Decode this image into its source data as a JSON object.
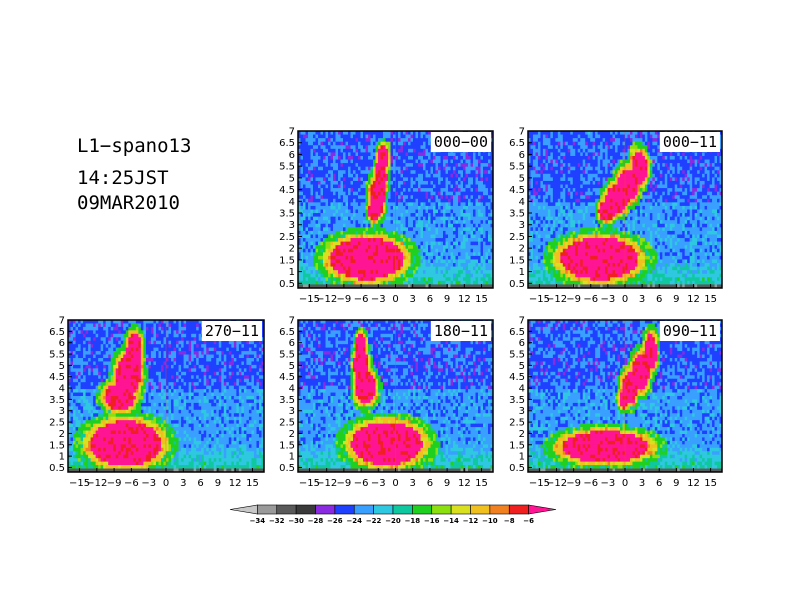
{
  "header": {
    "line1": "L1−spano13",
    "line2": "14:25JST",
    "line3": "09MAR2010"
  },
  "colorbar": {
    "labels": [
      "−34",
      "−32",
      "−30",
      "−28",
      "−26",
      "−24",
      "−22",
      "−20",
      "−18",
      "−16",
      "−14",
      "−12",
      "−10",
      "−8",
      "−6"
    ],
    "colors": [
      "#c8c8c8",
      "#9a9a9a",
      "#5a5a5a",
      "#3a3a3a",
      "#8a2be2",
      "#2040ff",
      "#3aa0ff",
      "#2ec8e0",
      "#10c8a0",
      "#20d020",
      "#8ce010",
      "#d8e020",
      "#f0c020",
      "#f08020",
      "#f02020",
      "#ff1493"
    ],
    "extend": "both"
  },
  "chart_data": [
    {
      "type": "heatmap",
      "title": "000−00",
      "x_ticks": [
        "−15",
        "−12",
        "−9",
        "−6",
        "−3",
        "0",
        "3",
        "6",
        "9",
        "12",
        "15"
      ],
      "y_ticks": [
        "0.5",
        "1",
        "1.5",
        "2",
        "2.5",
        "3",
        "3.5",
        "4",
        "4.5",
        "5",
        "5.5",
        "6",
        "6.5",
        "7"
      ],
      "xlim": [
        -17,
        17
      ],
      "ylim": [
        0.3,
        7
      ],
      "grid": false
    },
    {
      "type": "heatmap",
      "title": "000−11",
      "x_ticks": [
        "−15",
        "−12",
        "−9",
        "−6",
        "−3",
        "0",
        "3",
        "6",
        "9",
        "12",
        "15"
      ],
      "y_ticks": [
        "0.5",
        "1",
        "1.5",
        "2",
        "2.5",
        "3",
        "3.5",
        "4",
        "4.5",
        "5",
        "5.5",
        "6",
        "6.5",
        "7"
      ],
      "xlim": [
        -17,
        17
      ],
      "ylim": [
        0.3,
        7
      ],
      "grid": false
    },
    {
      "type": "heatmap",
      "title": "270−11",
      "x_ticks": [
        "−15",
        "−12",
        "−9",
        "−6",
        "−3",
        "0",
        "3",
        "6",
        "9",
        "12",
        "15"
      ],
      "y_ticks": [
        "0.5",
        "1",
        "1.5",
        "2",
        "2.5",
        "3",
        "3.5",
        "4",
        "4.5",
        "5",
        "5.5",
        "6",
        "6.5",
        "7"
      ],
      "xlim": [
        -17,
        17
      ],
      "ylim": [
        0.3,
        7
      ],
      "grid": false
    },
    {
      "type": "heatmap",
      "title": "180−11",
      "x_ticks": [
        "−15",
        "−12",
        "−9",
        "−6",
        "−3",
        "0",
        "3",
        "6",
        "9",
        "12",
        "15"
      ],
      "y_ticks": [
        "0.5",
        "1",
        "1.5",
        "2",
        "2.5",
        "3",
        "3.5",
        "4",
        "4.5",
        "5",
        "5.5",
        "6",
        "6.5",
        "7"
      ],
      "xlim": [
        -17,
        17
      ],
      "ylim": [
        0.3,
        7
      ],
      "grid": false
    },
    {
      "type": "heatmap",
      "title": "090−11",
      "x_ticks": [
        "−15",
        "−12",
        "−9",
        "−6",
        "−3",
        "0",
        "3",
        "6",
        "9",
        "12",
        "15"
      ],
      "y_ticks": [
        "0.5",
        "1",
        "1.5",
        "2",
        "2.5",
        "3",
        "3.5",
        "4",
        "4.5",
        "5",
        "5.5",
        "6",
        "6.5",
        "7"
      ],
      "xlim": [
        -17,
        17
      ],
      "ylim": [
        0.3,
        7
      ],
      "grid": false
    }
  ]
}
